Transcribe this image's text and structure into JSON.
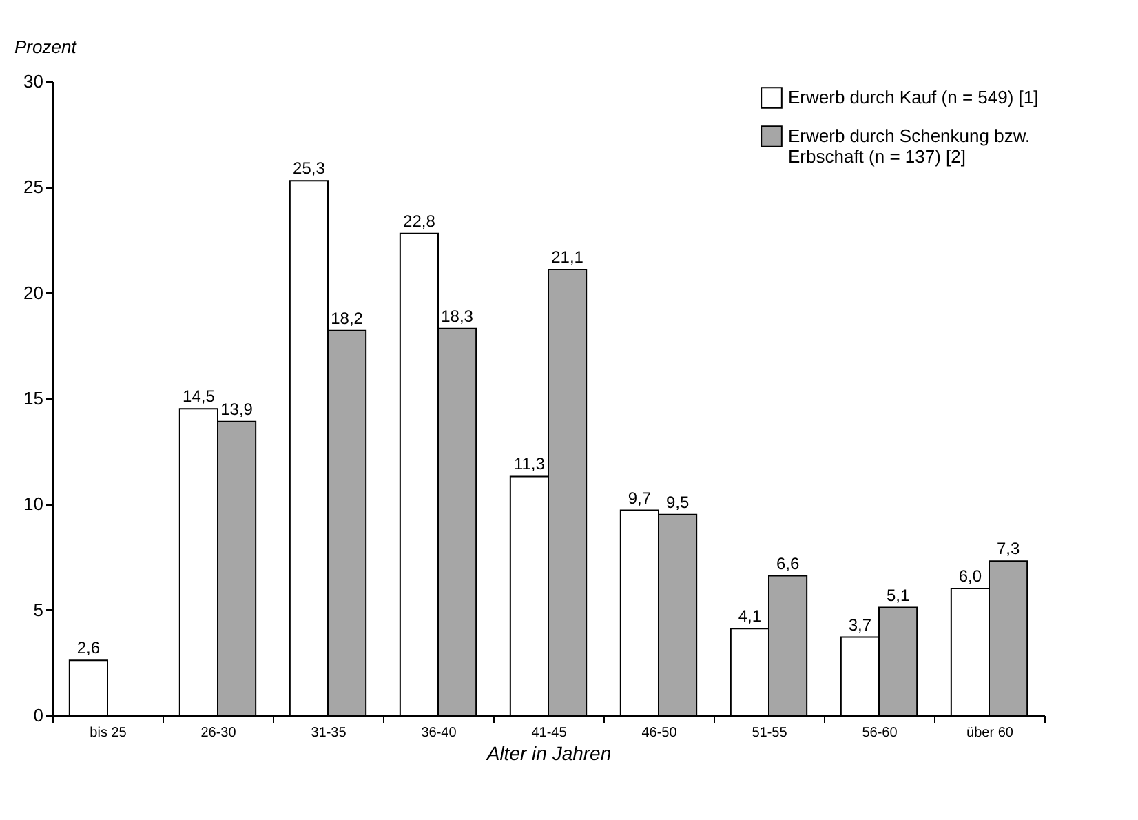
{
  "chart_data": {
    "type": "bar",
    "xlabel": "Alter in Jahren",
    "ylabel": "Prozent",
    "categories": [
      "bis 25",
      "26-30",
      "31-35",
      "36-40",
      "41-45",
      "46-50",
      "51-55",
      "56-60",
      "über 60"
    ],
    "series": [
      {
        "name": "Erwerb durch Kauf (n = 549) [1]",
        "color": "#ffffff",
        "values": [
          2.6,
          14.5,
          25.3,
          22.8,
          11.3,
          9.7,
          4.1,
          3.7,
          6.0
        ],
        "value_labels": [
          "2,6",
          "14,5",
          "25,3",
          "22,8",
          "11,3",
          "9,7",
          "4,1",
          "3,7",
          "6,0"
        ]
      },
      {
        "name": "Erwerb durch Schenkung bzw. Erbschaft (n = 137) [2]",
        "color": "#a6a6a6",
        "values": [
          null,
          13.9,
          18.2,
          18.3,
          21.1,
          9.5,
          6.6,
          5.1,
          7.3
        ],
        "value_labels": [
          null,
          "13,9",
          "18,2",
          "18,3",
          "21,1",
          "9,5",
          "6,6",
          "5,1",
          "7,3"
        ]
      }
    ],
    "ylim": [
      0,
      30
    ],
    "yticks": [
      0,
      5,
      10,
      15,
      20,
      25,
      30
    ],
    "grid": false,
    "legend": "top right"
  }
}
